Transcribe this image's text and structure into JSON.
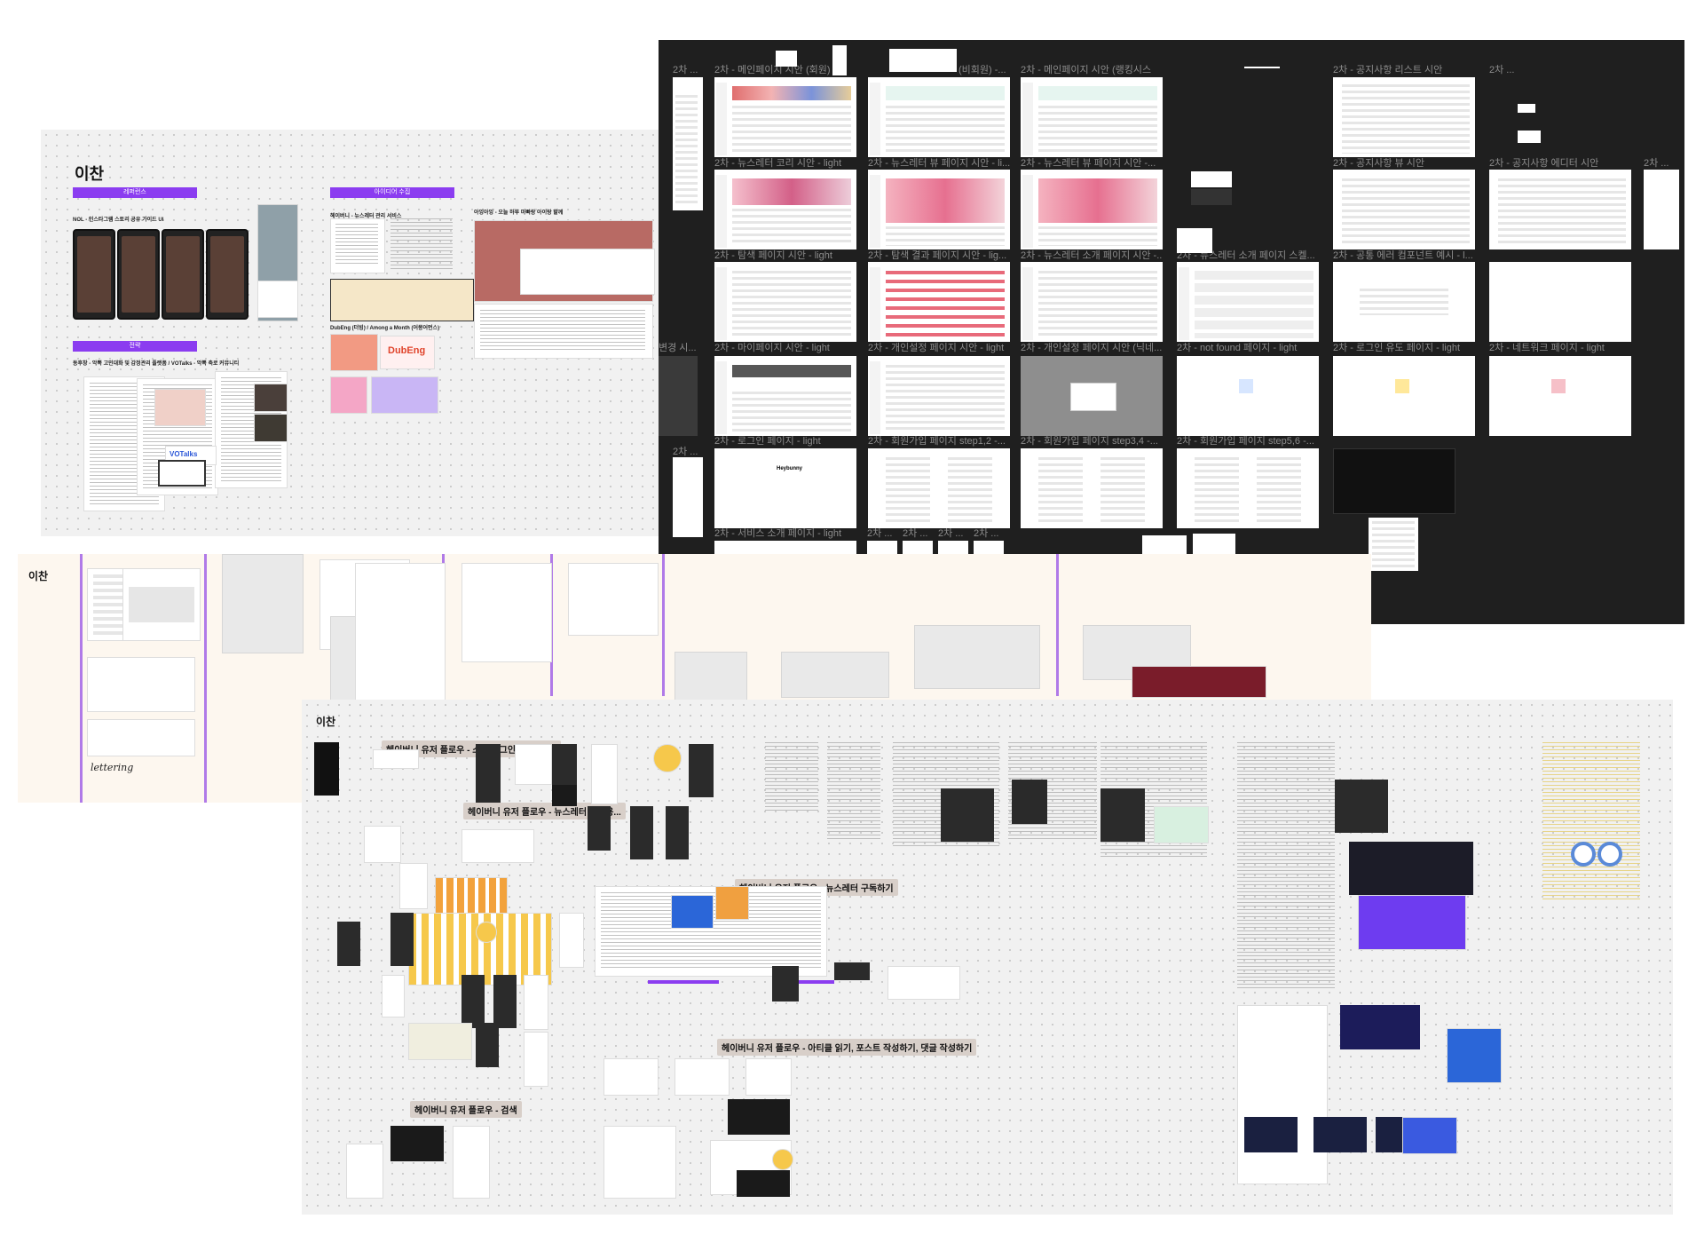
{
  "canvas": {
    "background": "#ffffff"
  },
  "board_top_left": {
    "title": "이찬",
    "tags": [
      "레퍼런스",
      "아이디어 수집",
      "전략"
    ],
    "captions": [
      "NOL - 인스타그램 스토리 공유 가이드 UI",
      "헤이버니 - 뉴스레터 관리 서비스",
      "아잉아잉 - 오늘 하루 마빠랑 아이랑 할께",
      "DubEng (더빙) / Among a Month (어몽어먼스)",
      "동후창 - 악뽁 고민대화 및 감정관리 플랫폼 / VOTalks - 악뽁 축로 커뮤니티"
    ],
    "misc": [
      "DubEng",
      "Among a Month",
      "VOTalks"
    ]
  },
  "board_dark": {
    "labels": [
      "2차 ...",
      "2차 - 메인페이지 시안 (회원)",
      "(비회원) -...",
      "2차 - 메인페이지 시안 (랭킹시스",
      "2차 - 공지사항 리스트 시안",
      "2차 ...",
      "2차 - 뉴스레터 코리 시안 - light",
      "2차 - 뉴스레터 뷰 페이지 시안 - li...",
      "2차 - 뉴스레터 뷰 페이지 시안 -...",
      "2차 - 공지사항 뷰 시안",
      "2차 - 공지사항 에디터 시안",
      "2차 ...",
      "2차 - 탐색 페이지 시안 - light",
      "2차 - 탐색 결과 페이지 시안 - lig...",
      "2차 - 뉴스레터 소개 페이지 시안 -...",
      "2차 - 뉴스레터 소개 페이지 스켈...",
      "2차 - 공통 에러 컴포넌트 예시 - l...",
      "변경 시...",
      "2차 - 마이페이지 시안 - light",
      "2차 - 개인설정 페이지 시안 - light",
      "2차 - 개인설정 페이지 시안 (닉네...",
      "2차 - not found 페이지 - light",
      "2차 - 로그인 유도 페이지 - light",
      "2차 - 네트워크 페이지 - light",
      "2차 ...",
      "2차 - 로그인 페이지 - light",
      "2차 - 회원가입 페이지 step1,2 -...",
      "2차 - 회원가입 페이지 step3,4 -...",
      "2차 - 회원가입 페이지 step5,6 -...",
      "2차 - 서비스 소개 페이지 - light",
      "2차 ...",
      "2차 ...",
      "2차 ...",
      "2차 ..."
    ],
    "frame_brand": "Heybunny"
  },
  "board_cream": {
    "title": "이찬",
    "note": "lettering"
  },
  "board_bottom": {
    "title": "이찬",
    "flows": [
      "헤이버니 유저 플로우 - 소셜 로그인 (회원가입)",
      "헤이버니 유저 플로우 - 뉴스레터 구독용...",
      "헤이버니 유저 플로우 - 뉴스레터 구독하기",
      "헤이버니 유저 플로우 - 아티클 읽기, 포스트 작성하기, 댓글 작성하기",
      "헤이버니 유저 플로우 - 검색"
    ]
  },
  "colors": {
    "purple": "#8b3df0",
    "green": "#31b45a",
    "dark": "#1f1f1f",
    "banner": "#d8cfc9"
  }
}
